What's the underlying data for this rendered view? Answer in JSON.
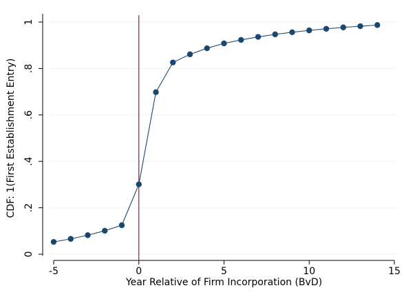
{
  "chart_data": {
    "type": "line",
    "title": "",
    "xlabel": "Year Relative of Firm Incorporation (BvD)",
    "ylabel": "CDF: 1(First Establishment Entry)",
    "xlim": [
      -5,
      15
    ],
    "ylim": [
      0,
      1
    ],
    "xticks": [
      "-5",
      "0",
      "5",
      "10",
      "15"
    ],
    "xtick_values": [
      -5,
      0,
      5,
      10,
      15
    ],
    "yticks": [
      "0",
      ".2",
      ".4",
      ".6",
      ".8",
      "1"
    ],
    "ytick_values": [
      0,
      0.2,
      0.4,
      0.6,
      0.8,
      1
    ],
    "grid": "horizontal",
    "reference_line_x": 0,
    "series": [
      {
        "x": [
          -5,
          -4,
          -3,
          -2,
          -1,
          0,
          1,
          2,
          3,
          4,
          5,
          6,
          7,
          8,
          9,
          10,
          11,
          12,
          13,
          14
        ],
        "y": [
          0.053,
          0.066,
          0.082,
          0.101,
          0.125,
          0.301,
          0.698,
          0.826,
          0.861,
          0.887,
          0.908,
          0.923,
          0.936,
          0.947,
          0.956,
          0.964,
          0.971,
          0.977,
          0.982,
          0.987
        ]
      }
    ]
  },
  "colors": {
    "series": "#1a476f",
    "reference_line": "#a0103e",
    "grid": "#eaf2f3",
    "axis": "#000000"
  }
}
